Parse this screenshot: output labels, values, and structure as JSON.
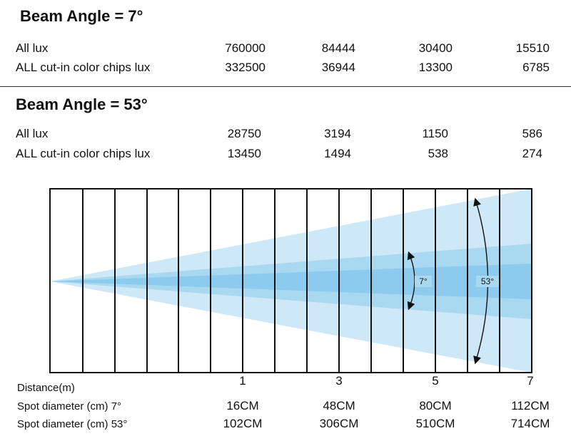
{
  "section1": {
    "heading": "Beam Angle = 7°",
    "rows": [
      {
        "label": "All lux",
        "values": [
          "760000",
          "84444",
          "30400",
          "15510"
        ]
      },
      {
        "label": "ALL cut-in color chips lux",
        "values": [
          "332500",
          "36944",
          "13300",
          "6785"
        ]
      }
    ]
  },
  "section2": {
    "heading": "Beam Angle = 53°",
    "rows": [
      {
        "label": "All lux",
        "values": [
          "28750",
          "3194",
          "1150",
          "586"
        ]
      },
      {
        "label": "ALL cut-in color chips lux",
        "values": [
          "13450",
          "1494",
          "538",
          "274"
        ]
      }
    ]
  },
  "diagram": {
    "angle_small": "7°",
    "angle_large": "53°",
    "colors": {
      "outer_cone": "#cfe8f7",
      "mid_cone": "#a9d8f1",
      "inner_cone": "#8ccbee",
      "line": "#111111"
    }
  },
  "bottom": {
    "distance_label": "Distance(m)",
    "distance_ticks": [
      "1",
      "3",
      "5",
      "7"
    ],
    "spot7_label": "Spot diameter (cm) 7°",
    "spot7_values": [
      "16CM",
      "48CM",
      "80CM",
      "112CM"
    ],
    "spot53_label": "Spot diameter (cm) 53°",
    "spot53_values": [
      "102CM",
      "306CM",
      "510CM",
      "714CM"
    ]
  }
}
